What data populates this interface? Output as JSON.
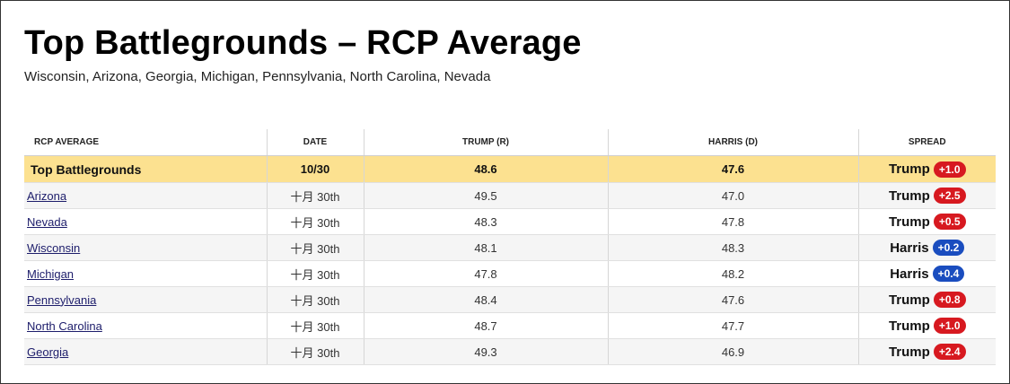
{
  "header": {
    "title": "Top Battlegrounds – RCP Average",
    "subtitle": "Wisconsin, Arizona, Georgia, Michigan, Pennsylvania, North Carolina, Nevada"
  },
  "table": {
    "columns": [
      "RCP AVERAGE",
      "DATE",
      "TRUMP (R)",
      "HARRIS (D)",
      "SPREAD"
    ],
    "average_row": {
      "label": "Top Battlegrounds",
      "date": "10/30",
      "trump": "48.6",
      "harris": "47.6",
      "spread_leader": "Trump",
      "spread_value": "+1.0"
    },
    "rows": [
      {
        "state": "Arizona",
        "date": "十月 30th",
        "trump": "49.5",
        "harris": "47.0",
        "spread_leader": "Trump",
        "spread_value": "+2.5"
      },
      {
        "state": "Nevada",
        "date": "十月 30th",
        "trump": "48.3",
        "harris": "47.8",
        "spread_leader": "Trump",
        "spread_value": "+0.5"
      },
      {
        "state": "Wisconsin",
        "date": "十月 30th",
        "trump": "48.1",
        "harris": "48.3",
        "spread_leader": "Harris",
        "spread_value": "+0.2"
      },
      {
        "state": "Michigan",
        "date": "十月 30th",
        "trump": "47.8",
        "harris": "48.2",
        "spread_leader": "Harris",
        "spread_value": "+0.4"
      },
      {
        "state": "Pennsylvania",
        "date": "十月 30th",
        "trump": "48.4",
        "harris": "47.6",
        "spread_leader": "Trump",
        "spread_value": "+0.8"
      },
      {
        "state": "North Carolina",
        "date": "十月 30th",
        "trump": "48.7",
        "harris": "47.7",
        "spread_leader": "Trump",
        "spread_value": "+1.0"
      },
      {
        "state": "Georgia",
        "date": "十月 30th",
        "trump": "49.3",
        "harris": "46.9",
        "spread_leader": "Trump",
        "spread_value": "+2.4"
      }
    ]
  },
  "colors": {
    "trump_badge": "#d71920",
    "harris_badge": "#1a4dbf",
    "average_row_bg": "#fce190"
  }
}
